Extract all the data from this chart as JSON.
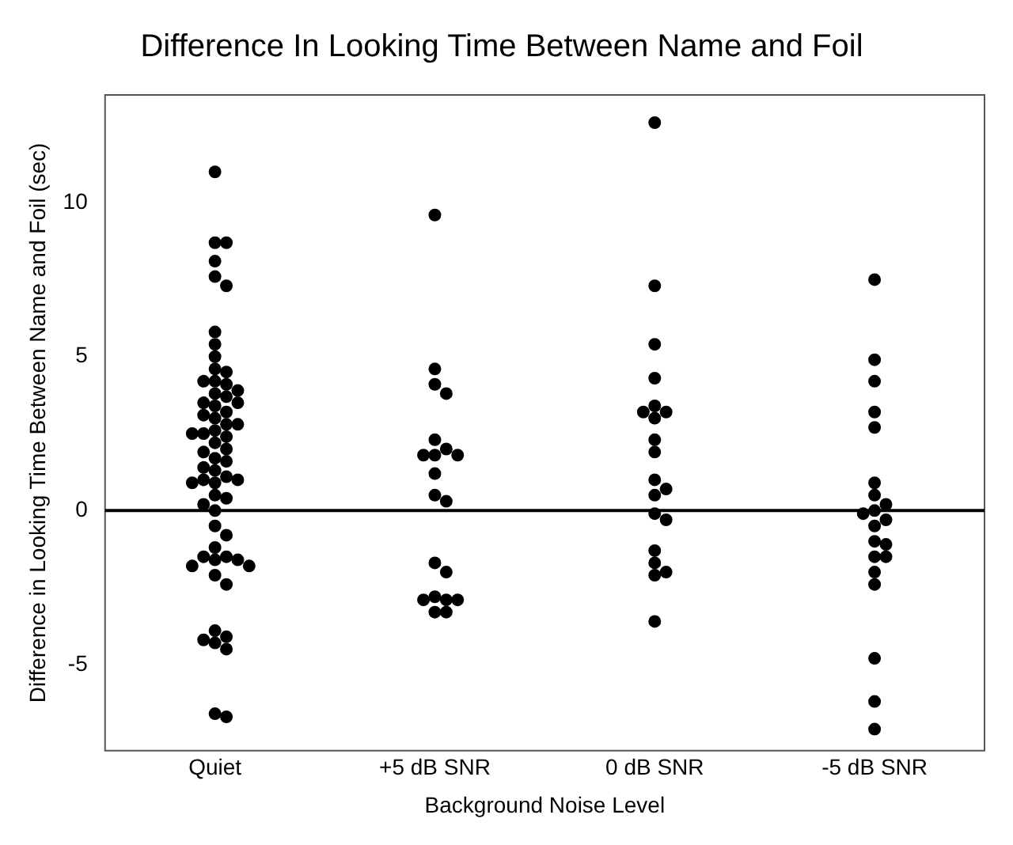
{
  "chart_data": {
    "type": "scatter",
    "title": "Difference In Looking Time Between Name and Foil",
    "xlabel": "Background Noise Level",
    "ylabel": "Difference in Looking Time Between Name and Foil (sec)",
    "series": [
      {
        "color": "#000000",
        "x": [
          "Quiet",
          "Quiet",
          "Quiet",
          "Quiet",
          "Quiet",
          "Quiet",
          "Quiet",
          "Quiet",
          "Quiet",
          "Quiet",
          "Quiet",
          "Quiet",
          "Quiet",
          "Quiet",
          "Quiet",
          "Quiet",
          "Quiet",
          "Quiet",
          "Quiet",
          "Quiet",
          "Quiet",
          "Quiet",
          "Quiet",
          "Quiet",
          "Quiet",
          "Quiet",
          "Quiet",
          "Quiet",
          "Quiet",
          "Quiet",
          "Quiet",
          "Quiet",
          "Quiet",
          "Quiet",
          "Quiet",
          "Quiet",
          "Quiet",
          "Quiet",
          "Quiet",
          "Quiet",
          "Quiet",
          "Quiet",
          "Quiet",
          "Quiet",
          "Quiet",
          "Quiet",
          "Quiet",
          "Quiet",
          "Quiet",
          "Quiet",
          "Quiet",
          "Quiet",
          "Quiet",
          "Quiet",
          "Quiet",
          "Quiet",
          "Quiet",
          "Quiet",
          "Quiet",
          "Quiet",
          "Quiet",
          "Quiet",
          "Quiet",
          "+5 dB SNR",
          "+5 dB SNR",
          "+5 dB SNR",
          "+5 dB SNR",
          "+5 dB SNR",
          "+5 dB SNR",
          "+5 dB SNR",
          "+5 dB SNR",
          "+5 dB SNR",
          "+5 dB SNR",
          "+5 dB SNR",
          "+5 dB SNR",
          "+5 dB SNR",
          "+5 dB SNR",
          "+5 dB SNR",
          "+5 dB SNR",
          "+5 dB SNR",
          "+5 dB SNR",
          "+5 dB SNR",
          "+5 dB SNR",
          "0 dB SNR",
          "0 dB SNR",
          "0 dB SNR",
          "0 dB SNR",
          "0 dB SNR",
          "0 dB SNR",
          "0 dB SNR",
          "0 dB SNR",
          "0 dB SNR",
          "0 dB SNR",
          "0 dB SNR",
          "0 dB SNR",
          "0 dB SNR",
          "0 dB SNR",
          "0 dB SNR",
          "0 dB SNR",
          "0 dB SNR",
          "0 dB SNR",
          "0 dB SNR",
          "0 dB SNR",
          "-5 dB SNR",
          "-5 dB SNR",
          "-5 dB SNR",
          "-5 dB SNR",
          "-5 dB SNR",
          "-5 dB SNR",
          "-5 dB SNR",
          "-5 dB SNR",
          "-5 dB SNR",
          "-5 dB SNR",
          "-5 dB SNR",
          "-5 dB SNR",
          "-5 dB SNR",
          "-5 dB SNR",
          "-5 dB SNR",
          "-5 dB SNR",
          "-5 dB SNR",
          "-5 dB SNR",
          "-5 dB SNR",
          "-5 dB SNR",
          "-5 dB SNR"
        ],
        "values": [
          11.0,
          8.7,
          8.7,
          8.1,
          7.6,
          7.3,
          5.8,
          5.4,
          5.0,
          4.6,
          4.5,
          4.2,
          4.2,
          4.1,
          3.9,
          3.8,
          3.7,
          3.5,
          3.5,
          3.4,
          3.2,
          3.1,
          3.0,
          2.8,
          2.8,
          2.6,
          2.5,
          2.5,
          2.4,
          2.2,
          2.0,
          1.9,
          1.7,
          1.6,
          1.4,
          1.3,
          1.1,
          1.0,
          1.0,
          0.9,
          0.9,
          0.5,
          0.4,
          0.2,
          0.0,
          -0.5,
          -0.8,
          -1.2,
          -1.5,
          -1.5,
          -1.6,
          -1.6,
          -1.8,
          -1.8,
          -2.1,
          -2.4,
          -3.9,
          -4.1,
          -4.2,
          -4.3,
          -4.5,
          -6.6,
          -6.7,
          9.6,
          4.6,
          4.1,
          3.8,
          2.3,
          2.0,
          1.8,
          1.8,
          1.8,
          1.2,
          0.5,
          0.3,
          -1.7,
          -2.0,
          -2.8,
          -2.9,
          -2.9,
          -2.9,
          -3.3,
          -3.3,
          12.6,
          7.3,
          5.4,
          4.3,
          3.4,
          3.2,
          3.2,
          3.0,
          2.3,
          1.9,
          1.0,
          0.7,
          0.5,
          -0.1,
          -0.3,
          -1.3,
          -1.7,
          -2.0,
          -2.1,
          -3.6,
          7.5,
          4.9,
          4.2,
          3.2,
          2.7,
          0.9,
          0.5,
          0.2,
          0.0,
          -0.1,
          -0.3,
          -0.5,
          -1.0,
          -1.1,
          -1.5,
          -1.5,
          -2.0,
          -2.4,
          -4.8,
          -6.2,
          -7.1
        ]
      }
    ],
    "categories": [
      "Quiet",
      "+5 dB SNR",
      "0 dB SNR",
      "-5 dB SNR"
    ],
    "ylim": [
      -7.8,
      13.5
    ],
    "yticks": [
      -5,
      0,
      5,
      10
    ],
    "grid": false,
    "legend": false,
    "marker": "circle",
    "ref_lines": [
      {
        "axis": "y",
        "value": 0,
        "color": "#000000",
        "line_style": "solid"
      }
    ]
  }
}
